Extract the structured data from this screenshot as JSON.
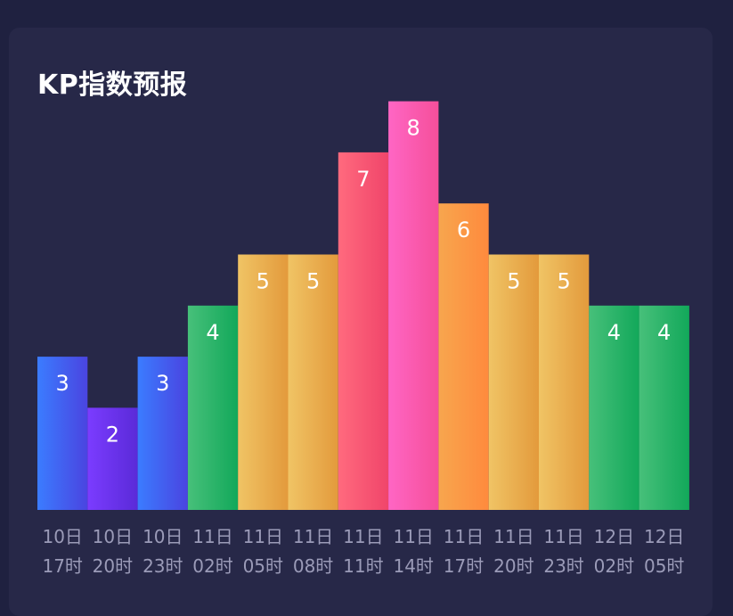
{
  "title": "KP指数预报",
  "chart_data": {
    "type": "bar",
    "title": "KP指数预报",
    "categories": [
      [
        "10日",
        "17时"
      ],
      [
        "10日",
        "20时"
      ],
      [
        "10日",
        "23时"
      ],
      [
        "11日",
        "02时"
      ],
      [
        "11日",
        "05时"
      ],
      [
        "11日",
        "08时"
      ],
      [
        "11日",
        "11时"
      ],
      [
        "11日",
        "14时"
      ],
      [
        "11日",
        "17时"
      ],
      [
        "11日",
        "20时"
      ],
      [
        "11日",
        "23时"
      ],
      [
        "12日",
        "02时"
      ],
      [
        "12日",
        "05时"
      ]
    ],
    "values": [
      3,
      2,
      3,
      4,
      5,
      5,
      7,
      8,
      6,
      5,
      5,
      4,
      4
    ],
    "data_labels": true,
    "grid": false,
    "ylim": [
      0,
      8
    ],
    "colors": {
      "2": [
        "#7b3cff",
        "#5a2ad8"
      ],
      "3": [
        "#3b7cff",
        "#4a44e0"
      ],
      "4": [
        "#47c07a",
        "#12a85a"
      ],
      "5": [
        "#f0c465",
        "#e39a3c"
      ],
      "6": [
        "#f7a64e",
        "#ff8a3d"
      ],
      "7": [
        "#ff6a7e",
        "#f0456a"
      ],
      "8": [
        "#ff66c4",
        "#f54f9a"
      ]
    }
  }
}
